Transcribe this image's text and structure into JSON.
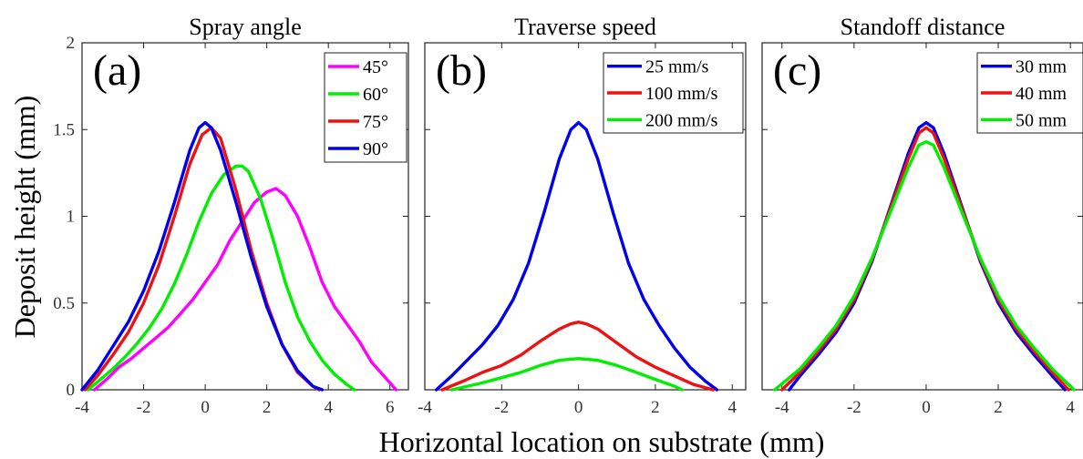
{
  "figure": {
    "xlabel": "Horizontal location on substrate (mm)",
    "ylabel": "Deposit height (mm)"
  },
  "chart_data": [
    {
      "type": "line",
      "panel_label": "(a)",
      "title": "Spray angle",
      "xlim": [
        -4,
        6.6
      ],
      "ylim": [
        0,
        2
      ],
      "xticks": [
        "-4",
        "-2",
        "0",
        "2",
        "4",
        "6"
      ],
      "yticks": [
        "0",
        "0.5",
        "1",
        "1.5",
        "2"
      ],
      "grid": false,
      "legend_position": "top-right",
      "series": [
        {
          "name": "45°",
          "color": "#ff00ff",
          "x": [
            -3.6,
            -3.2,
            -2.8,
            -2.4,
            -2.0,
            -1.6,
            -1.2,
            -0.8,
            -0.4,
            0.0,
            0.4,
            0.8,
            1.2,
            1.6,
            2.0,
            2.3,
            2.6,
            3.0,
            3.4,
            3.8,
            4.2,
            4.6,
            5.0,
            5.4,
            5.8,
            6.2
          ],
          "y": [
            0.0,
            0.06,
            0.13,
            0.18,
            0.24,
            0.3,
            0.36,
            0.44,
            0.52,
            0.62,
            0.72,
            0.86,
            0.97,
            1.08,
            1.14,
            1.16,
            1.12,
            1.0,
            0.82,
            0.62,
            0.48,
            0.38,
            0.28,
            0.16,
            0.08,
            0.0
          ]
        },
        {
          "name": "60°",
          "color": "#00ee00",
          "x": [
            -3.8,
            -3.4,
            -3.0,
            -2.6,
            -2.2,
            -1.8,
            -1.4,
            -1.0,
            -0.6,
            -0.2,
            0.2,
            0.6,
            1.0,
            1.2,
            1.4,
            1.8,
            2.2,
            2.6,
            3.0,
            3.4,
            3.8,
            4.2,
            4.6,
            4.85
          ],
          "y": [
            0.0,
            0.06,
            0.12,
            0.19,
            0.27,
            0.36,
            0.47,
            0.61,
            0.78,
            0.97,
            1.13,
            1.24,
            1.29,
            1.29,
            1.26,
            1.1,
            0.87,
            0.62,
            0.42,
            0.28,
            0.17,
            0.09,
            0.03,
            0.0
          ]
        },
        {
          "name": "75°",
          "color": "#ee1111",
          "x": [
            -3.9,
            -3.5,
            -3.0,
            -2.5,
            -2.0,
            -1.5,
            -1.0,
            -0.5,
            -0.1,
            0.2,
            0.5,
            1.0,
            1.5,
            2.0,
            2.5,
            3.0,
            3.5,
            3.7
          ],
          "y": [
            0.0,
            0.08,
            0.2,
            0.33,
            0.5,
            0.72,
            1.0,
            1.3,
            1.47,
            1.51,
            1.45,
            1.15,
            0.8,
            0.5,
            0.26,
            0.1,
            0.02,
            0.0
          ]
        },
        {
          "name": "90°",
          "color": "#0000ee",
          "x": [
            -4.0,
            -3.5,
            -3.0,
            -2.5,
            -2.0,
            -1.5,
            -1.0,
            -0.5,
            -0.2,
            0.0,
            0.2,
            0.5,
            1.0,
            1.5,
            2.0,
            2.5,
            3.0,
            3.5,
            3.8
          ],
          "y": [
            0.0,
            0.11,
            0.25,
            0.39,
            0.57,
            0.8,
            1.08,
            1.38,
            1.51,
            1.54,
            1.51,
            1.38,
            1.08,
            0.76,
            0.48,
            0.26,
            0.11,
            0.02,
            0.0
          ]
        }
      ]
    },
    {
      "type": "line",
      "panel_label": "(b)",
      "title": "Traverse speed",
      "xlim": [
        -4,
        4.35
      ],
      "ylim": [
        0,
        2
      ],
      "xticks": [
        "-4",
        "-2",
        "0",
        "2",
        "4"
      ],
      "grid": false,
      "legend_position": "top-right",
      "series": [
        {
          "name": "25 mm/s",
          "color": "#0000ee",
          "x": [
            -3.7,
            -3.3,
            -2.9,
            -2.5,
            -2.1,
            -1.7,
            -1.3,
            -0.9,
            -0.5,
            -0.2,
            0.0,
            0.2,
            0.5,
            0.9,
            1.3,
            1.7,
            2.1,
            2.5,
            2.9,
            3.3,
            3.6
          ],
          "y": [
            0.0,
            0.08,
            0.17,
            0.26,
            0.37,
            0.52,
            0.73,
            1.02,
            1.33,
            1.5,
            1.54,
            1.5,
            1.33,
            1.02,
            0.73,
            0.52,
            0.37,
            0.24,
            0.13,
            0.05,
            0.0
          ]
        },
        {
          "name": "100 mm/s",
          "color": "#ee1111",
          "x": [
            -3.55,
            -3.0,
            -2.5,
            -2.0,
            -1.5,
            -1.0,
            -0.5,
            -0.2,
            0.0,
            0.2,
            0.5,
            1.0,
            1.5,
            2.0,
            2.5,
            3.0,
            3.5
          ],
          "y": [
            0.0,
            0.05,
            0.1,
            0.14,
            0.2,
            0.28,
            0.35,
            0.38,
            0.39,
            0.38,
            0.35,
            0.27,
            0.19,
            0.13,
            0.08,
            0.03,
            0.0
          ]
        },
        {
          "name": "200 mm/s",
          "color": "#00ee00",
          "x": [
            -3.3,
            -2.5,
            -2.0,
            -1.5,
            -1.0,
            -0.5,
            0.0,
            0.5,
            1.0,
            1.5,
            2.0,
            2.5,
            2.7
          ],
          "y": [
            0.0,
            0.04,
            0.07,
            0.1,
            0.14,
            0.17,
            0.18,
            0.17,
            0.14,
            0.1,
            0.06,
            0.02,
            0.0
          ]
        }
      ]
    },
    {
      "type": "line",
      "panel_label": "(c)",
      "title": "Standoff distance",
      "xlim": [
        -4.55,
        4.35
      ],
      "ylim": [
        0,
        2
      ],
      "xticks": [
        "-4",
        "-2",
        "0",
        "2",
        "4"
      ],
      "grid": false,
      "legend_position": "top-right",
      "series": [
        {
          "name": "30 mm",
          "color": "#0000ee",
          "x": [
            -3.8,
            -3.5,
            -3.0,
            -2.5,
            -2.0,
            -1.5,
            -1.0,
            -0.5,
            -0.2,
            0.0,
            0.2,
            0.5,
            1.0,
            1.5,
            2.0,
            2.5,
            3.0,
            3.5,
            3.85
          ],
          "y": [
            0.0,
            0.08,
            0.2,
            0.33,
            0.5,
            0.74,
            1.05,
            1.36,
            1.51,
            1.54,
            1.51,
            1.36,
            1.05,
            0.74,
            0.5,
            0.33,
            0.2,
            0.08,
            0.0
          ]
        },
        {
          "name": "40 mm",
          "color": "#ee1111",
          "x": [
            -4.0,
            -3.5,
            -3.0,
            -2.5,
            -2.0,
            -1.5,
            -1.0,
            -0.5,
            -0.2,
            0.0,
            0.2,
            0.5,
            1.0,
            1.5,
            2.0,
            2.5,
            3.0,
            3.5,
            3.95
          ],
          "y": [
            0.0,
            0.1,
            0.22,
            0.35,
            0.52,
            0.75,
            1.04,
            1.33,
            1.48,
            1.51,
            1.48,
            1.33,
            1.04,
            0.75,
            0.52,
            0.35,
            0.22,
            0.1,
            0.0
          ]
        },
        {
          "name": "50 mm",
          "color": "#00ee00",
          "x": [
            -4.2,
            -3.5,
            -3.0,
            -2.5,
            -2.0,
            -1.5,
            -1.0,
            -0.5,
            -0.2,
            0.0,
            0.2,
            0.5,
            1.0,
            1.5,
            2.0,
            2.5,
            3.0,
            3.5,
            4.1
          ],
          "y": [
            0.0,
            0.12,
            0.24,
            0.37,
            0.54,
            0.76,
            1.02,
            1.28,
            1.41,
            1.43,
            1.41,
            1.28,
            1.02,
            0.76,
            0.54,
            0.37,
            0.24,
            0.12,
            0.0
          ]
        }
      ]
    }
  ]
}
